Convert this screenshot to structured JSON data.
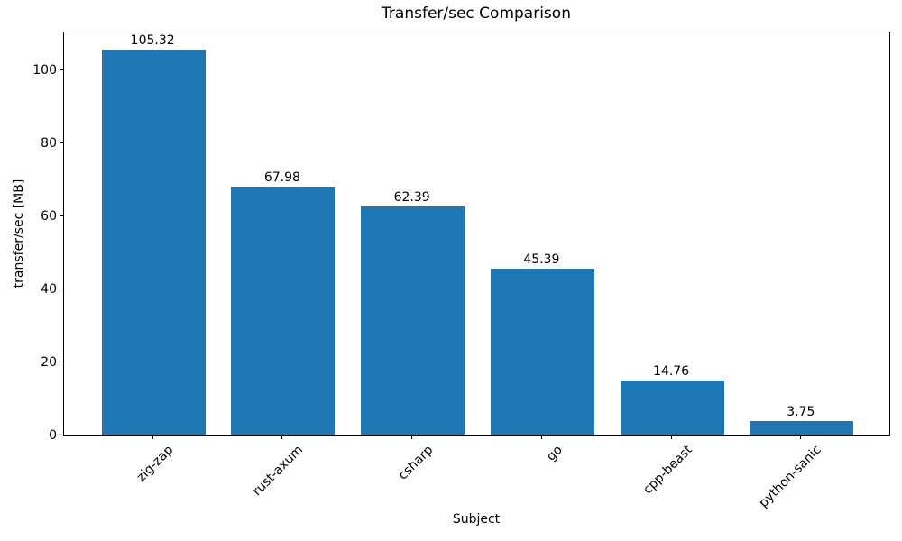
{
  "chart_data": {
    "type": "bar",
    "title": "Transfer/sec Comparison",
    "xlabel": "Subject",
    "ylabel": "transfer/sec [MB]",
    "categories": [
      "zig-zap",
      "rust-axum",
      "csharp",
      "go",
      "cpp-beast",
      "python-sanic"
    ],
    "values": [
      105.32,
      67.98,
      62.39,
      45.39,
      14.76,
      3.75
    ],
    "value_labels": [
      "105.32",
      "67.98",
      "62.39",
      "45.39",
      "14.76",
      "3.75"
    ],
    "yticks": [
      0,
      20,
      40,
      60,
      80,
      100
    ],
    "ylim": [
      0,
      110.59
    ],
    "xlim": [
      -0.69,
      5.69
    ],
    "bar_width": 0.8,
    "bar_color": "#1f77b4",
    "text_color": "#000000",
    "grid": false,
    "legend": null
  }
}
